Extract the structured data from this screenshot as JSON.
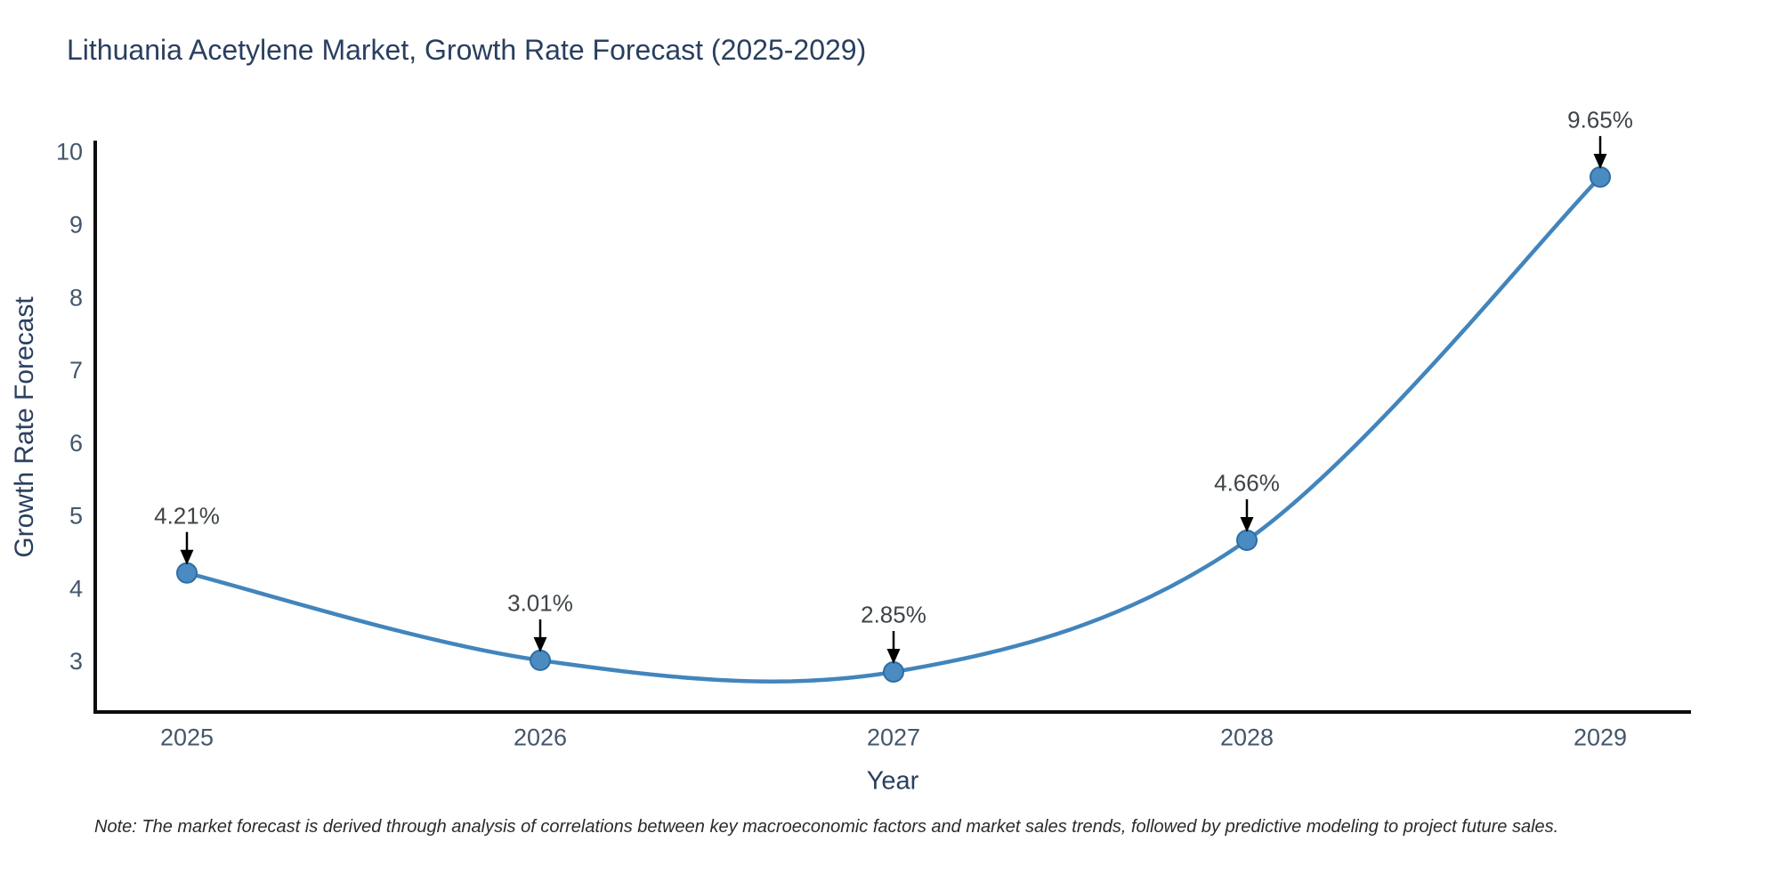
{
  "title": "Lithuania Acetylene Market, Growth Rate Forecast (2025-2029)",
  "note": "Note: The market forecast is derived through analysis of correlations between key macroeconomic factors and market sales trends, followed by predictive modeling to project future sales.",
  "chart_data": {
    "type": "line",
    "title": "Lithuania Acetylene Market, Growth Rate Forecast (2025-2029)",
    "xlabel": "Year",
    "ylabel": "Growth Rate Forecast",
    "categories": [
      "2025",
      "2026",
      "2027",
      "2028",
      "2029"
    ],
    "series": [
      {
        "name": "Growth Rate Forecast",
        "values": [
          4.21,
          3.01,
          2.85,
          4.66,
          9.65
        ],
        "labels": [
          "4.21%",
          "3.01%",
          "2.85%",
          "4.66%",
          "9.65%"
        ]
      }
    ],
    "y_ticks": [
      3,
      4,
      5,
      6,
      7,
      8,
      9,
      10
    ],
    "ylim": [
      2.3,
      10.15
    ],
    "line_shape": "spline",
    "markers": true,
    "grid": false,
    "legend": "none",
    "annotation_style": "black-down-arrow",
    "colors": {
      "line": "#4285bc",
      "marker_fill": "#4a8cc2",
      "marker_edge": "#2f6da4",
      "axis": "#0d0d0d",
      "title_text": "#2a3f5f",
      "tick_text": "#44566b",
      "annotation_text": "#3f4447",
      "arrow": "#000000",
      "background": "#ffffff"
    }
  }
}
